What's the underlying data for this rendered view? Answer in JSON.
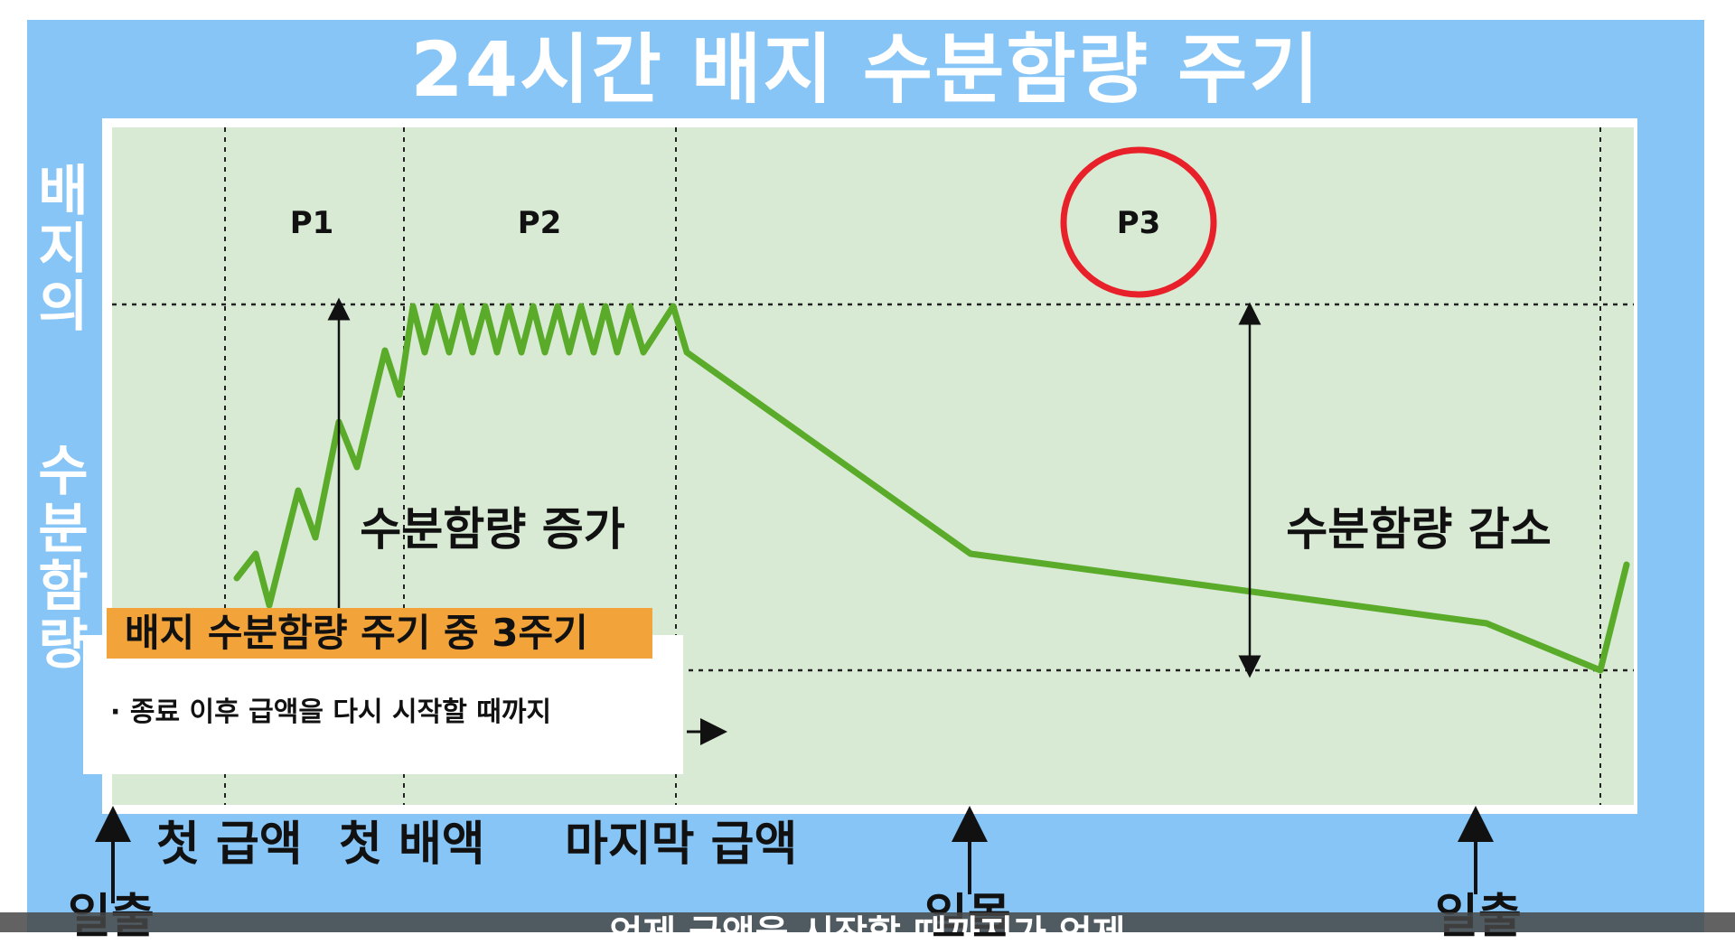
{
  "title": "24시간 배지 수분함량 주기",
  "y_axis_label_top": [
    "배",
    "지",
    "의"
  ],
  "y_axis_label_bottom": [
    "수",
    "분",
    "함",
    "량"
  ],
  "phases": [
    "P1",
    "P2",
    "P3"
  ],
  "highlighted_phase": "P3",
  "annotations": {
    "increase": "수분함량 증가",
    "decrease": "수분함량 감소"
  },
  "events": {
    "first_irrigation": "첫 급액",
    "first_drainage": "첫 배액",
    "last_irrigation": "마지막 급액",
    "sunrise": "일출",
    "sunset": "일몰",
    "sunrise_next": "일출"
  },
  "caption": {
    "heading": "배지 수분함량 주기 중 3주기",
    "bullet": "· 종료 이후 급액을 다시 시작할 때까지"
  },
  "subtitle": "언제 급액을 시작할 때까지가 언제",
  "colors": {
    "background": "#87c5f7",
    "plot": "#d9ead4",
    "line": "#5aab2a",
    "highlight_circle": "#e8202a",
    "caption": "#f2a33a"
  }
}
